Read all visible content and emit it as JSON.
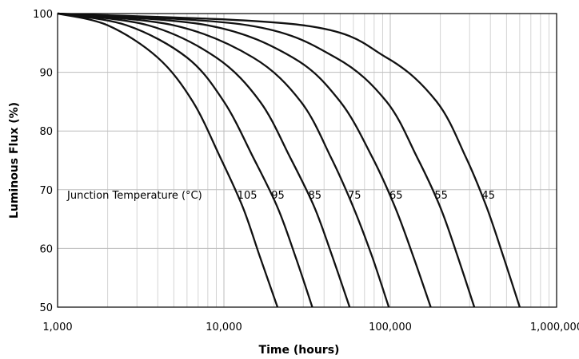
{
  "chart_data": {
    "type": "line",
    "title": "",
    "xlabel": "Time (hours)",
    "ylabel": "Luminous Flux (%)",
    "x_scale": "log",
    "xlim": [
      1000,
      1000000
    ],
    "ylim": [
      50,
      100
    ],
    "x_ticks": [
      1000,
      10000,
      100000,
      1000000
    ],
    "x_tick_labels": [
      "1,000",
      "10,000",
      "100,000",
      "1,000,000"
    ],
    "y_ticks": [
      50,
      60,
      70,
      80,
      90,
      100
    ],
    "y_tick_labels": [
      "50",
      "60",
      "70",
      "80",
      "90",
      "100"
    ],
    "grid": true,
    "legend": "none",
    "annotation": "Junction Temperature (°C)",
    "series": [
      {
        "name": "105",
        "x": [
          1000,
          2000,
          4000,
          6500,
          9500,
          13000,
          16500,
          21000
        ],
        "y": [
          100,
          98,
          92.5,
          85,
          75.5,
          67,
          58.5,
          50
        ]
      },
      {
        "name": "95",
        "x": [
          1000,
          2600,
          6000,
          10000,
          15000,
          21000,
          27000,
          34000
        ],
        "y": [
          100,
          98,
          92.5,
          85,
          75.5,
          67,
          58.5,
          50
        ]
      },
      {
        "name": "85",
        "x": [
          1000,
          3500,
          9000,
          16500,
          25000,
          35000,
          45000,
          57000
        ],
        "y": [
          100,
          98,
          92.5,
          85,
          75.5,
          67,
          58.5,
          50
        ]
      },
      {
        "name": "75",
        "x": [
          1000,
          5000,
          15000,
          29000,
          44000,
          60000,
          78000,
          98000
        ],
        "y": [
          100,
          98,
          92.5,
          85,
          75.5,
          67,
          58.5,
          50
        ]
      },
      {
        "name": "65",
        "x": [
          1000,
          8000,
          26000,
          50000,
          78000,
          107000,
          138000,
          175000
        ],
        "y": [
          100,
          98,
          92.5,
          85,
          75.5,
          67,
          58.5,
          50
        ]
      },
      {
        "name": "55",
        "x": [
          1000,
          14000,
          47000,
          95000,
          145000,
          200000,
          255000,
          320000
        ],
        "y": [
          100,
          98,
          92.5,
          85,
          75.5,
          67,
          58.5,
          50
        ]
      },
      {
        "name": "45",
        "x": [
          1000,
          30000,
          95000,
          190000,
          285000,
          380000,
          480000,
          600000
        ],
        "y": [
          100,
          98,
          92.5,
          85,
          75.5,
          67,
          58.5,
          50
        ]
      }
    ]
  }
}
